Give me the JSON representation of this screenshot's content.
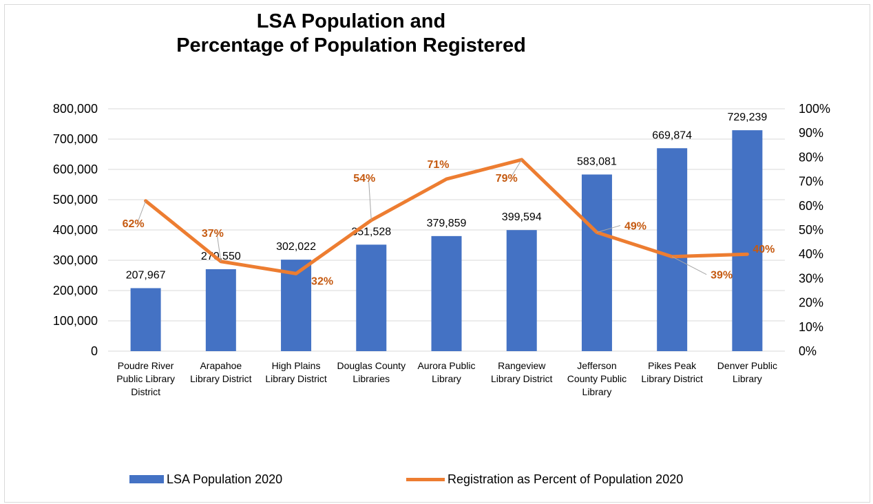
{
  "title_line1": "LSA Population and",
  "title_line2": "Percentage of Population Registered",
  "colors": {
    "bar": "#4472c4",
    "line": "#ed7d31",
    "grid": "#d9d9d9",
    "leader": "#a6a6a6"
  },
  "legend": {
    "bar_label": "LSA Population 2020",
    "line_label": "Registration as Percent of Population 2020"
  },
  "chart_data": {
    "type": "bar",
    "title": "LSA Population and Percentage of Population Registered",
    "categories": [
      [
        "Poudre River",
        "Public Library",
        "District"
      ],
      [
        "Arapahoe",
        "Library District"
      ],
      [
        "High Plains",
        "Library District"
      ],
      [
        "Douglas County",
        "Libraries"
      ],
      [
        "Aurora Public",
        "Library"
      ],
      [
        "Rangeview",
        "Library District"
      ],
      [
        "Jefferson",
        "County Public",
        "Library"
      ],
      [
        "Pikes Peak",
        "Library District"
      ],
      [
        "Denver Public",
        "Library"
      ]
    ],
    "series": [
      {
        "name": "LSA Population 2020",
        "type": "bar",
        "axis": "left",
        "values": [
          207967,
          270550,
          302022,
          351528,
          379859,
          399594,
          583081,
          669874,
          729239
        ],
        "labels": [
          "207,967",
          "270,550",
          "302,022",
          "351,528",
          "379,859",
          "399,594",
          "583,081",
          "669,874",
          "729,239"
        ]
      },
      {
        "name": "Registration as Percent of Population 2020",
        "type": "line",
        "axis": "right",
        "values": [
          62,
          37,
          32,
          54,
          71,
          79,
          49,
          39,
          40
        ],
        "labels": [
          "62%",
          "37%",
          "32%",
          "54%",
          "71%",
          "79%",
          "49%",
          "39%",
          "40%"
        ]
      }
    ],
    "y_left": {
      "min": 0,
      "max": 800000,
      "step": 100000,
      "ticks": [
        "0",
        "100,000",
        "200,000",
        "300,000",
        "400,000",
        "500,000",
        "600,000",
        "700,000",
        "800,000"
      ]
    },
    "y_right": {
      "min": 0,
      "max": 100,
      "step": 10,
      "ticks": [
        "0%",
        "10%",
        "20%",
        "30%",
        "40%",
        "50%",
        "60%",
        "70%",
        "80%",
        "90%",
        "100%"
      ]
    },
    "grid": true,
    "legend_position": "bottom"
  }
}
